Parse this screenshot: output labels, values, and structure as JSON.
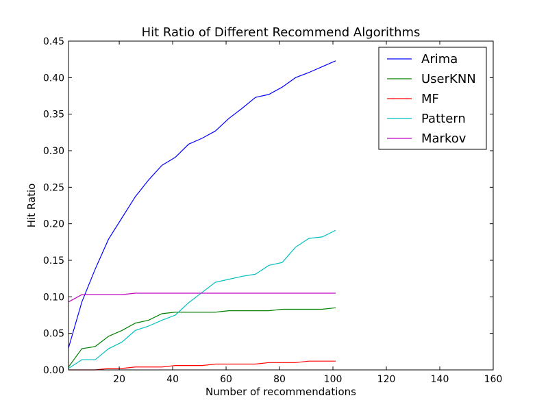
{
  "chart_data": {
    "type": "line",
    "title": "Hit Ratio of Different Recommend Algorithms",
    "xlabel": "Number of recommendations",
    "ylabel": "Hit Ratio",
    "xlim": [
      1,
      160
    ],
    "ylim": [
      0,
      0.45
    ],
    "xticks": [
      "20",
      "40",
      "60",
      "80",
      "100",
      "120",
      "140",
      "160"
    ],
    "yticks": [
      "0.00",
      "0.05",
      "0.10",
      "0.15",
      "0.20",
      "0.25",
      "0.30",
      "0.35",
      "0.40",
      "0.45"
    ],
    "grid": false,
    "legend_position": "top-right",
    "x": [
      1,
      6,
      11,
      16,
      21,
      26,
      31,
      36,
      41,
      46,
      51,
      56,
      61,
      66,
      71,
      76,
      81,
      86,
      91,
      96,
      101
    ],
    "series": [
      {
        "name": "Arima",
        "color": "#0000ff",
        "values": [
          0.03,
          0.093,
          0.138,
          0.179,
          0.208,
          0.237,
          0.26,
          0.28,
          0.291,
          0.309,
          0.317,
          0.327,
          0.344,
          0.358,
          0.373,
          0.377,
          0.387,
          0.4,
          0.407,
          0.415,
          0.423
        ]
      },
      {
        "name": "UserKNN",
        "color": "#008000",
        "values": [
          0.004,
          0.029,
          0.032,
          0.046,
          0.054,
          0.064,
          0.068,
          0.077,
          0.079,
          0.079,
          0.079,
          0.079,
          0.081,
          0.081,
          0.081,
          0.081,
          0.083,
          0.083,
          0.083,
          0.083,
          0.085
        ]
      },
      {
        "name": "MF",
        "color": "#ff0000",
        "values": [
          0.0,
          0.0,
          0.0,
          0.002,
          0.002,
          0.004,
          0.004,
          0.004,
          0.006,
          0.006,
          0.006,
          0.008,
          0.008,
          0.008,
          0.008,
          0.01,
          0.01,
          0.01,
          0.012,
          0.012,
          0.012
        ]
      },
      {
        "name": "Pattern",
        "color": "#00bfbf",
        "values": [
          0.002,
          0.014,
          0.014,
          0.029,
          0.038,
          0.054,
          0.06,
          0.068,
          0.075,
          0.092,
          0.106,
          0.12,
          0.124,
          0.128,
          0.131,
          0.143,
          0.147,
          0.168,
          0.18,
          0.182,
          0.191
        ]
      },
      {
        "name": "Markov",
        "color": "#bf00bf",
        "values": [
          0.093,
          0.103,
          0.103,
          0.103,
          0.103,
          0.105,
          0.105,
          0.105,
          0.105,
          0.105,
          0.105,
          0.105,
          0.105,
          0.105,
          0.105,
          0.105,
          0.105,
          0.105,
          0.105,
          0.105,
          0.105
        ]
      }
    ]
  }
}
